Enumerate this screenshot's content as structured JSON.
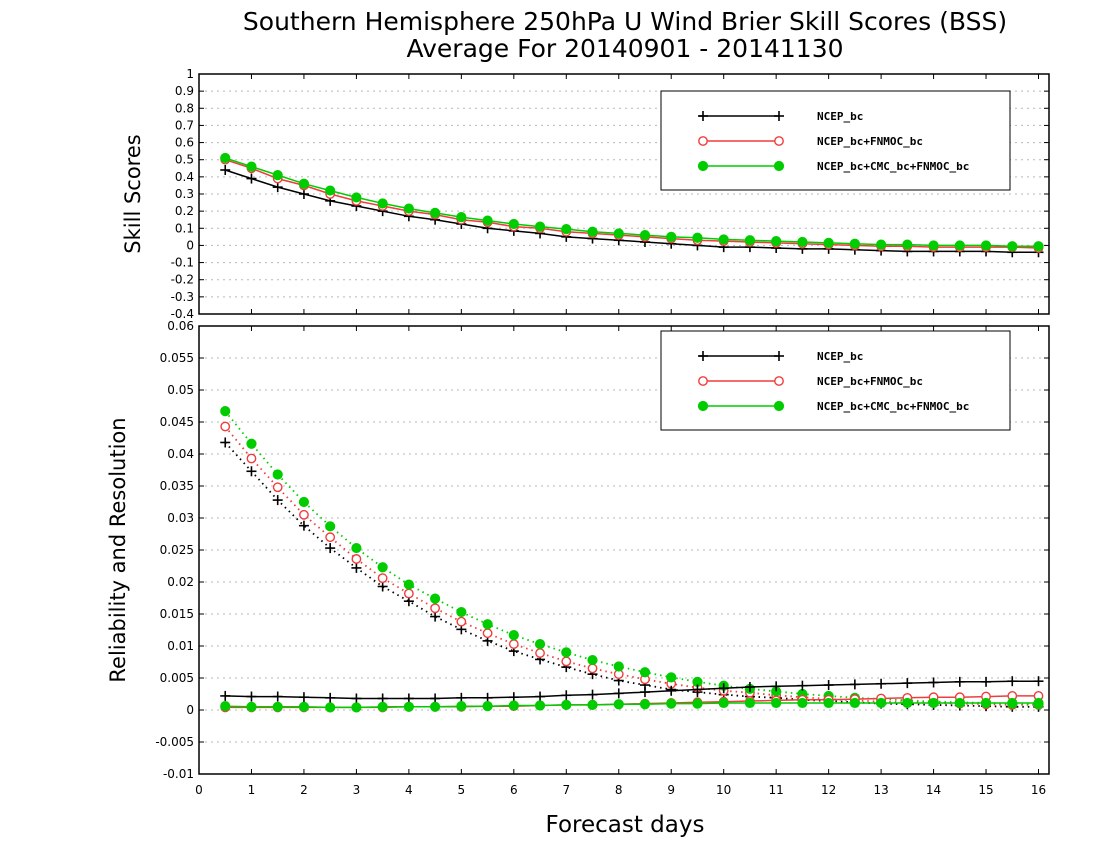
{
  "title_line1": "Southern Hemisphere 250hPa U Wind Brier Skill Scores (BSS)",
  "title_line2": "Average For 20140901 - 20141130",
  "xlabel": "Forecast days",
  "chart_data": [
    {
      "type": "line",
      "ylabel": "Skill Scores",
      "xlim": [
        0,
        16.2
      ],
      "ylim": [
        -0.4,
        1
      ],
      "xticks": [
        0,
        1,
        2,
        3,
        4,
        5,
        6,
        7,
        8,
        9,
        10,
        11,
        12,
        13,
        14,
        15,
        16
      ],
      "yticks": [
        -0.4,
        -0.3,
        -0.2,
        -0.1,
        0,
        0.1,
        0.2,
        0.3,
        0.4,
        0.5,
        0.6,
        0.7,
        0.8,
        0.9,
        1
      ],
      "ytick_labels": [
        "-0.4",
        "-0.3",
        "-0.2",
        "-0.1",
        "0",
        "0.1",
        "0.2",
        "0.3",
        "0.4",
        "0.5",
        "0.6",
        "0.7",
        "0.8",
        "0.9",
        "1"
      ],
      "grid": true,
      "legend_position": "top-right",
      "x": [
        0.5,
        1,
        1.5,
        2,
        2.5,
        3,
        3.5,
        4,
        4.5,
        5,
        5.5,
        6,
        6.5,
        7,
        7.5,
        8,
        8.5,
        9,
        9.5,
        10,
        10.5,
        11,
        11.5,
        12,
        12.5,
        13,
        13.5,
        14,
        14.5,
        15,
        15.5,
        16
      ],
      "series": [
        {
          "name": "NCEP_bc",
          "color": "#000000",
          "marker": "plus",
          "style": "solid",
          "values": [
            0.44,
            0.39,
            0.34,
            0.3,
            0.26,
            0.23,
            0.2,
            0.17,
            0.15,
            0.125,
            0.1,
            0.085,
            0.07,
            0.05,
            0.04,
            0.03,
            0.02,
            0.01,
            0.0,
            -0.01,
            -0.01,
            -0.015,
            -0.02,
            -0.02,
            -0.025,
            -0.03,
            -0.035,
            -0.035,
            -0.035,
            -0.035,
            -0.04,
            -0.04
          ]
        },
        {
          "name": "NCEP_bc+FNMOC_bc",
          "color": "#f03c3c",
          "marker": "circle-open",
          "style": "solid",
          "values": [
            0.5,
            0.45,
            0.39,
            0.35,
            0.3,
            0.26,
            0.23,
            0.2,
            0.18,
            0.15,
            0.135,
            0.11,
            0.1,
            0.08,
            0.07,
            0.06,
            0.05,
            0.04,
            0.03,
            0.025,
            0.02,
            0.015,
            0.01,
            0.005,
            0.0,
            -0.005,
            -0.005,
            -0.01,
            -0.01,
            -0.01,
            -0.01,
            -0.015
          ]
        },
        {
          "name": "NCEP_bc+CMC_bc+FNMOC_bc",
          "color": "#00cc00",
          "marker": "circle-filled",
          "style": "solid",
          "values": [
            0.51,
            0.46,
            0.41,
            0.36,
            0.32,
            0.28,
            0.245,
            0.215,
            0.19,
            0.165,
            0.145,
            0.125,
            0.11,
            0.095,
            0.08,
            0.07,
            0.06,
            0.05,
            0.045,
            0.035,
            0.03,
            0.025,
            0.02,
            0.015,
            0.01,
            0.005,
            0.005,
            0.0,
            0.0,
            0.0,
            -0.005,
            -0.005
          ]
        }
      ]
    },
    {
      "type": "line",
      "ylabel": "Reliability and Resolution",
      "xlim": [
        0,
        16.2
      ],
      "ylim": [
        -0.01,
        0.06
      ],
      "xticks": [
        0,
        1,
        2,
        3,
        4,
        5,
        6,
        7,
        8,
        9,
        10,
        11,
        12,
        13,
        14,
        15,
        16
      ],
      "yticks": [
        -0.01,
        -0.005,
        0,
        0.005,
        0.01,
        0.015,
        0.02,
        0.025,
        0.03,
        0.035,
        0.04,
        0.045,
        0.05,
        0.055,
        0.06
      ],
      "ytick_labels": [
        "-0.01",
        "-0.005",
        "0",
        "0.005",
        "0.01",
        "0.015",
        "0.02",
        "0.025",
        "0.03",
        "0.035",
        "0.04",
        "0.045",
        "0.05",
        "0.055",
        "0.06"
      ],
      "grid": true,
      "legend_position": "top-right",
      "x": [
        0.5,
        1,
        1.5,
        2,
        2.5,
        3,
        3.5,
        4,
        4.5,
        5,
        5.5,
        6,
        6.5,
        7,
        7.5,
        8,
        8.5,
        9,
        9.5,
        10,
        10.5,
        11,
        11.5,
        12,
        12.5,
        13,
        13.5,
        14,
        14.5,
        15,
        15.5,
        16
      ],
      "series": [
        {
          "name": "NCEP_bc",
          "color": "#000000",
          "marker": "plus",
          "style": "dotted",
          "kind": "resolution",
          "values": [
            0.0418,
            0.0373,
            0.0328,
            0.0288,
            0.0253,
            0.0222,
            0.0193,
            0.017,
            0.0146,
            0.0126,
            0.0108,
            0.0092,
            0.0079,
            0.0067,
            0.0056,
            0.0046,
            0.0039,
            0.0032,
            0.0028,
            0.0024,
            0.0021,
            0.0019,
            0.0016,
            0.0014,
            0.0012,
            0.001,
            0.0009,
            0.0008,
            0.0007,
            0.0006,
            0.0005,
            0.0005
          ]
        },
        {
          "name": "NCEP_bc+FNMOC_bc",
          "color": "#f03c3c",
          "marker": "circle-open",
          "style": "dotted",
          "kind": "resolution",
          "values": [
            0.0443,
            0.0393,
            0.0348,
            0.0305,
            0.027,
            0.0236,
            0.0206,
            0.0182,
            0.0159,
            0.0138,
            0.012,
            0.0103,
            0.0089,
            0.0076,
            0.0065,
            0.0056,
            0.0048,
            0.0041,
            0.0035,
            0.003,
            0.0027,
            0.0023,
            0.002,
            0.0017,
            0.0015,
            0.0013,
            0.0012,
            0.0011,
            0.001,
            0.0009,
            0.0008,
            0.0008
          ]
        },
        {
          "name": "NCEP_bc+CMC_bc+FNMOC_bc",
          "color": "#00cc00",
          "marker": "circle-filled",
          "style": "dotted",
          "kind": "resolution",
          "values": [
            0.0467,
            0.0416,
            0.0368,
            0.0325,
            0.0287,
            0.0253,
            0.0223,
            0.0196,
            0.0174,
            0.0153,
            0.0134,
            0.0117,
            0.0103,
            0.009,
            0.0078,
            0.0068,
            0.0059,
            0.0051,
            0.0044,
            0.0038,
            0.0033,
            0.0029,
            0.0025,
            0.0022,
            0.0019,
            0.0017,
            0.0015,
            0.0013,
            0.0012,
            0.0011,
            0.001,
            0.0009
          ]
        },
        {
          "name": "NCEP_bc",
          "color": "#000000",
          "marker": "plus",
          "style": "solid",
          "kind": "reliability",
          "values": [
            0.0022,
            0.0021,
            0.0021,
            0.002,
            0.0019,
            0.0018,
            0.0018,
            0.0018,
            0.0018,
            0.0019,
            0.0019,
            0.002,
            0.0021,
            0.0023,
            0.0024,
            0.0026,
            0.0028,
            0.003,
            0.0032,
            0.0034,
            0.0036,
            0.0037,
            0.0038,
            0.0039,
            0.004,
            0.0041,
            0.0042,
            0.0043,
            0.0044,
            0.0044,
            0.0045,
            0.0045
          ]
        },
        {
          "name": "NCEP_bc+FNMOC_bc",
          "color": "#f03c3c",
          "marker": "circle-open",
          "style": "solid",
          "kind": "reliability",
          "values": [
            0.0004,
            0.0004,
            0.0004,
            0.0004,
            0.0004,
            0.0004,
            0.0004,
            0.0005,
            0.0005,
            0.0005,
            0.0006,
            0.0006,
            0.0007,
            0.0008,
            0.0008,
            0.0009,
            0.001,
            0.0011,
            0.0012,
            0.0013,
            0.0014,
            0.0015,
            0.0016,
            0.0016,
            0.0017,
            0.0018,
            0.0019,
            0.002,
            0.002,
            0.0021,
            0.0022,
            0.0022
          ]
        },
        {
          "name": "NCEP_bc+CMC_bc+FNMOC_bc",
          "color": "#00cc00",
          "marker": "circle-filled",
          "style": "solid",
          "kind": "reliability",
          "values": [
            0.0006,
            0.0005,
            0.0005,
            0.0005,
            0.0004,
            0.0004,
            0.0005,
            0.0005,
            0.0005,
            0.0006,
            0.0006,
            0.0007,
            0.0007,
            0.0008,
            0.0008,
            0.0009,
            0.0009,
            0.001,
            0.001,
            0.0011,
            0.0011,
            0.0011,
            0.0011,
            0.0011,
            0.0011,
            0.0011,
            0.0011,
            0.0011,
            0.0011,
            0.0011,
            0.0011,
            0.0011
          ]
        }
      ]
    }
  ],
  "legend_labels": [
    "NCEP_bc",
    "NCEP_bc+FNMOC_bc",
    "NCEP_bc+CMC_bc+FNMOC_bc"
  ]
}
